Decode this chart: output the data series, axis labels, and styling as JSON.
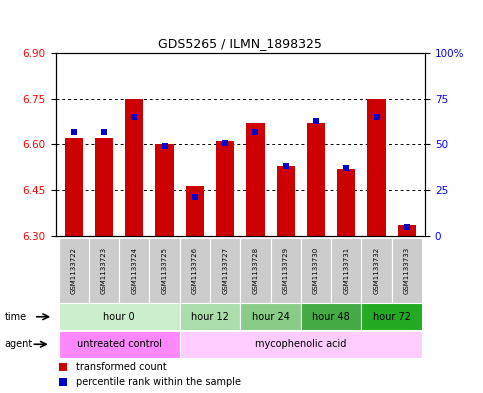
{
  "title": "GDS5265 / ILMN_1898325",
  "samples": [
    "GSM1133722",
    "GSM1133723",
    "GSM1133724",
    "GSM1133725",
    "GSM1133726",
    "GSM1133727",
    "GSM1133728",
    "GSM1133729",
    "GSM1133730",
    "GSM1133731",
    "GSM1133732",
    "GSM1133733"
  ],
  "transformed_count": [
    6.62,
    6.62,
    6.75,
    6.6,
    6.465,
    6.61,
    6.67,
    6.53,
    6.67,
    6.52,
    6.75,
    6.335
  ],
  "percentile_rank": [
    57,
    57,
    65,
    49,
    21,
    51,
    57,
    38,
    63,
    37,
    65,
    5
  ],
  "y_min": 6.3,
  "y_max": 6.9,
  "y_ticks_left": [
    6.3,
    6.45,
    6.6,
    6.75,
    6.9
  ],
  "y_ticks_right": [
    0,
    25,
    50,
    75,
    100
  ],
  "bar_color": "#cc0000",
  "dot_color": "#0000cc",
  "time_groups": [
    {
      "label": "hour 0",
      "start": 0,
      "end": 3,
      "color": "#cceecc"
    },
    {
      "label": "hour 12",
      "start": 4,
      "end": 5,
      "color": "#aaddaa"
    },
    {
      "label": "hour 24",
      "start": 6,
      "end": 7,
      "color": "#88cc88"
    },
    {
      "label": "hour 48",
      "start": 8,
      "end": 9,
      "color": "#44aa44"
    },
    {
      "label": "hour 72",
      "start": 10,
      "end": 11,
      "color": "#22aa22"
    }
  ],
  "agent_groups": [
    {
      "label": "untreated control",
      "start": 0,
      "end": 3,
      "color": "#ff99ff"
    },
    {
      "label": "mycophenolic acid",
      "start": 4,
      "end": 11,
      "color": "#ffccff"
    }
  ],
  "legend_items": [
    {
      "label": "transformed count",
      "color": "#cc0000"
    },
    {
      "label": "percentile rank within the sample",
      "color": "#0000cc"
    }
  ]
}
